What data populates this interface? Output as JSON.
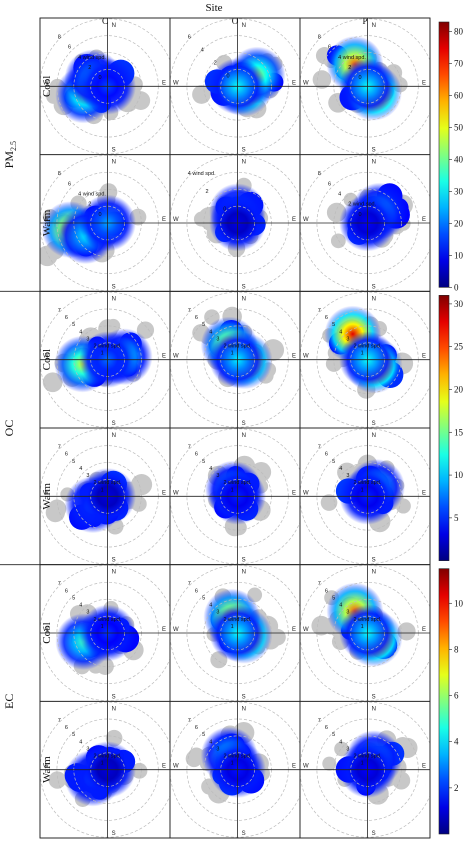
{
  "chart_data": {
    "type": "heatmap",
    "title": "Site",
    "columns": [
      "C",
      "O",
      "P"
    ],
    "rows": [
      {
        "pollutant": "PM",
        "subscript": "2.5",
        "season": "Cool"
      },
      {
        "pollutant": "PM",
        "subscript": "2.5",
        "season": "Warm"
      },
      {
        "pollutant": "OC",
        "subscript": "",
        "season": "Cool"
      },
      {
        "pollutant": "OC",
        "subscript": "",
        "season": "Warm"
      },
      {
        "pollutant": "EC",
        "subscript": "",
        "season": "Cool"
      },
      {
        "pollutant": "EC",
        "subscript": "",
        "season": "Warm"
      }
    ],
    "directions": [
      "N",
      "E",
      "S",
      "W"
    ],
    "wind_label": "wind spd.",
    "colorbars": [
      {
        "pollutant": "PM2.5",
        "ticks": [
          0,
          10,
          20,
          30,
          40,
          50,
          60,
          70,
          80
        ],
        "range": [
          0,
          83
        ]
      },
      {
        "pollutant": "OC",
        "ticks": [
          5,
          10,
          15,
          20,
          25,
          30
        ],
        "range": [
          0,
          31
        ]
      },
      {
        "pollutant": "EC",
        "ticks": [
          2,
          4,
          6,
          8,
          10
        ],
        "range": [
          0,
          11.5
        ]
      }
    ],
    "panels": [
      {
        "row": 0,
        "col": 0,
        "max_speed": 8,
        "speed_labels": [
          "8",
          "6",
          "4 wind spd.",
          "2",
          "0"
        ],
        "hotspots": [
          {
            "dir_deg": 250,
            "speed": 3,
            "value": 40
          },
          {
            "dir_deg": 300,
            "speed": 2,
            "value": 25
          }
        ]
      },
      {
        "row": 0,
        "col": 1,
        "max_speed": 6,
        "speed_labels": [
          "6",
          "4",
          "2",
          "0"
        ],
        "hotspots": [
          {
            "dir_deg": 105,
            "speed": 0.6,
            "value": 80
          },
          {
            "dir_deg": 60,
            "speed": 2,
            "value": 45
          }
        ]
      },
      {
        "row": 0,
        "col": 2,
        "max_speed": 8,
        "speed_labels": [
          "8",
          "6",
          "4 wind spd.",
          "2",
          "0"
        ],
        "hotspots": [
          {
            "dir_deg": 135,
            "speed": 1,
            "value": 80
          },
          {
            "dir_deg": 330,
            "speed": 3,
            "value": 65
          }
        ]
      },
      {
        "row": 1,
        "col": 0,
        "max_speed": 8,
        "speed_labels": [
          "8",
          "6",
          "4 wind spd.",
          "2",
          "0"
        ],
        "hotspots": [
          {
            "dir_deg": 260,
            "speed": 4.5,
            "value": 60
          },
          {
            "dir_deg": 240,
            "speed": 3,
            "value": 30
          }
        ]
      },
      {
        "row": 1,
        "col": 1,
        "max_speed": 6,
        "speed_labels": [
          "4 wind spd.",
          "2",
          "0"
        ],
        "hotspots": [
          {
            "dir_deg": 0,
            "speed": 1,
            "value": 20
          }
        ]
      },
      {
        "row": 1,
        "col": 2,
        "max_speed": 8,
        "speed_labels": [
          "8",
          "6",
          "4",
          "2 wind spd.",
          "0"
        ],
        "hotspots": [
          {
            "dir_deg": 45,
            "speed": 2,
            "value": 25
          }
        ]
      },
      {
        "row": 2,
        "col": 0,
        "max_speed": 8,
        "speed_labels": [
          "7",
          "6",
          "5",
          "4",
          "3",
          "2 wind spd.",
          "1"
        ],
        "hotspots": [
          {
            "dir_deg": 260,
            "speed": 3,
            "value": 18
          },
          {
            "dir_deg": 80,
            "speed": 2,
            "value": 12
          }
        ]
      },
      {
        "row": 2,
        "col": 1,
        "max_speed": 8,
        "speed_labels": [
          "7",
          "6",
          "5",
          "4",
          "3",
          "2 wind spd.",
          "1"
        ],
        "hotspots": [
          {
            "dir_deg": 100,
            "speed": 0.8,
            "value": 28
          },
          {
            "dir_deg": 330,
            "speed": 2,
            "value": 20
          }
        ]
      },
      {
        "row": 2,
        "col": 2,
        "max_speed": 8,
        "speed_labels": [
          "7",
          "6",
          "5",
          "4",
          "3",
          "2 wind spd.",
          "1"
        ],
        "hotspots": [
          {
            "dir_deg": 130,
            "speed": 1,
            "value": 30
          },
          {
            "dir_deg": 330,
            "speed": 3.5,
            "value": 28
          }
        ]
      },
      {
        "row": 3,
        "col": 0,
        "max_speed": 8,
        "speed_labels": [
          "7",
          "6",
          "5",
          "4",
          "3",
          "2 wind spd.",
          "1"
        ],
        "hotspots": [
          {
            "dir_deg": 240,
            "speed": 2,
            "value": 7
          }
        ]
      },
      {
        "row": 3,
        "col": 1,
        "max_speed": 8,
        "speed_labels": [
          "7",
          "6",
          "5",
          "4",
          "3",
          "2 wind spd.",
          "1"
        ],
        "hotspots": [
          {
            "dir_deg": 330,
            "speed": 1,
            "value": 12
          }
        ]
      },
      {
        "row": 3,
        "col": 2,
        "max_speed": 8,
        "speed_labels": [
          "7",
          "6",
          "5",
          "4",
          "3",
          "2 wind spd.",
          "1"
        ],
        "hotspots": [
          {
            "dir_deg": 45,
            "speed": 1.5,
            "value": 12
          }
        ]
      },
      {
        "row": 4,
        "col": 0,
        "max_speed": 8,
        "speed_labels": [
          "7",
          "6",
          "5",
          "4",
          "3",
          "2 wind spd.",
          "1"
        ],
        "hotspots": [
          {
            "dir_deg": 250,
            "speed": 3,
            "value": 5
          }
        ]
      },
      {
        "row": 4,
        "col": 1,
        "max_speed": 8,
        "speed_labels": [
          "7",
          "6",
          "5",
          "4",
          "3",
          "2 wind spd.",
          "1"
        ],
        "hotspots": [
          {
            "dir_deg": 110,
            "speed": 0.8,
            "value": 11
          },
          {
            "dir_deg": 340,
            "speed": 2,
            "value": 8
          }
        ]
      },
      {
        "row": 4,
        "col": 2,
        "max_speed": 8,
        "speed_labels": [
          "7",
          "6",
          "5",
          "4",
          "3",
          "2 wind spd.",
          "1"
        ],
        "hotspots": [
          {
            "dir_deg": 130,
            "speed": 1,
            "value": 11
          },
          {
            "dir_deg": 330,
            "speed": 3,
            "value": 9
          }
        ]
      },
      {
        "row": 5,
        "col": 0,
        "max_speed": 8,
        "speed_labels": [
          "7",
          "6",
          "5",
          "4",
          "3",
          "2 wind spd.",
          "1"
        ],
        "hotspots": [
          {
            "dir_deg": 240,
            "speed": 2,
            "value": 2.5
          }
        ]
      },
      {
        "row": 5,
        "col": 1,
        "max_speed": 8,
        "speed_labels": [
          "7",
          "6",
          "5",
          "4",
          "3",
          "2 wind spd.",
          "1"
        ],
        "hotspots": [
          {
            "dir_deg": 330,
            "speed": 2,
            "value": 4
          }
        ]
      },
      {
        "row": 5,
        "col": 2,
        "max_speed": 8,
        "speed_labels": [
          "7",
          "6",
          "5",
          "4",
          "3",
          "2 wind spd.",
          "1"
        ],
        "hotspots": [
          {
            "dir_deg": 30,
            "speed": 1.5,
            "value": 3.5
          }
        ]
      }
    ]
  }
}
